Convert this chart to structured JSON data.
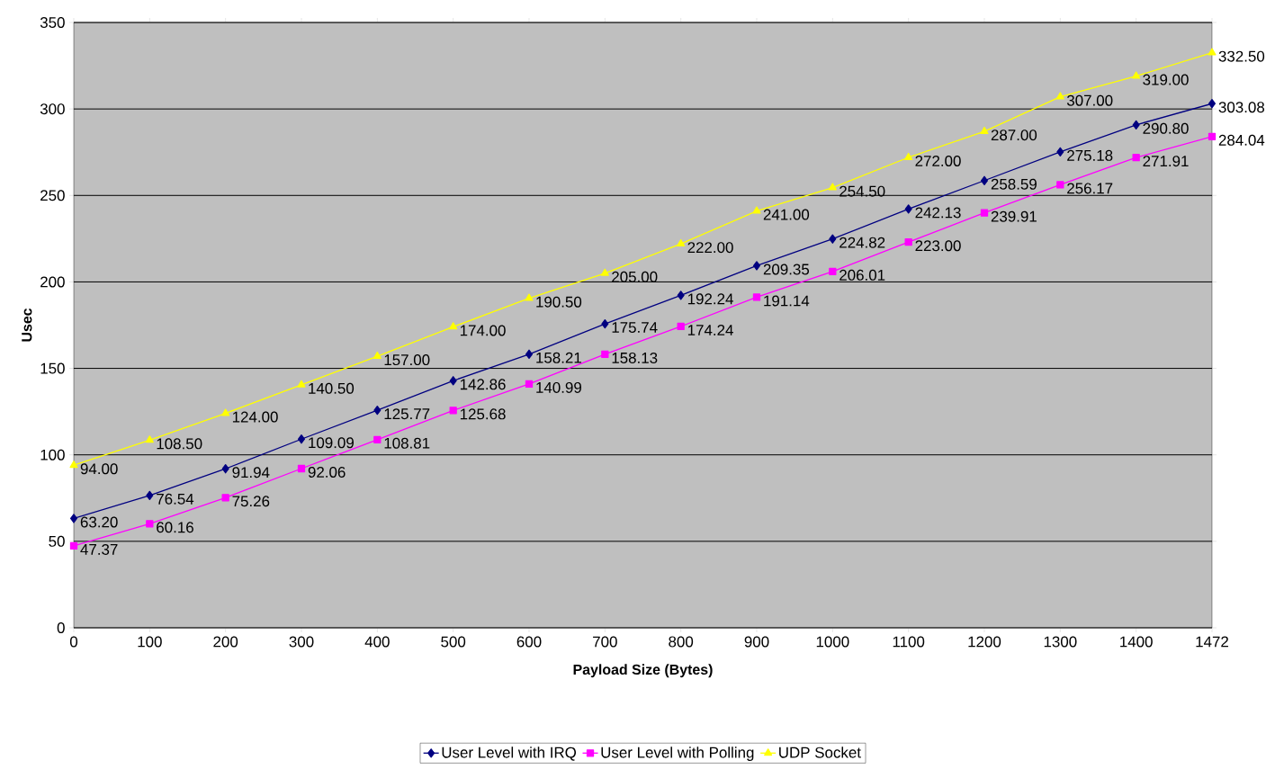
{
  "chart_data": {
    "type": "line",
    "xlabel": "Payload Size (Bytes)",
    "ylabel": "Usec",
    "categories": [
      "0",
      "100",
      "200",
      "300",
      "400",
      "500",
      "600",
      "700",
      "800",
      "900",
      "1000",
      "1100",
      "1200",
      "1300",
      "1400",
      "1472"
    ],
    "ylim": [
      0,
      350
    ],
    "yticks": [
      0,
      50,
      100,
      150,
      200,
      250,
      300,
      350
    ],
    "grid": "y",
    "legend": "bottom",
    "series": [
      {
        "name": "User Level with IRQ",
        "color": "#000080",
        "marker": "diamond",
        "values": [
          63.2,
          76.54,
          91.94,
          109.09,
          125.77,
          142.86,
          158.21,
          175.74,
          192.24,
          209.35,
          224.82,
          242.13,
          258.59,
          275.18,
          290.8,
          303.08
        ],
        "value_labels": [
          "63.20",
          "76.54",
          "91.94",
          "109.09",
          "125.77",
          "142.86",
          "158.21",
          "175.74",
          "192.24",
          "209.35",
          "224.82",
          "242.13",
          "258.59",
          "275.18",
          "290.80",
          "303.08"
        ]
      },
      {
        "name": "User Level with Polling",
        "color": "#ff00ff",
        "marker": "square",
        "values": [
          47.37,
          60.16,
          75.26,
          92.06,
          108.81,
          125.68,
          140.99,
          158.13,
          174.24,
          191.14,
          206.01,
          223.0,
          239.91,
          256.17,
          271.91,
          284.04
        ],
        "value_labels": [
          "47.37",
          "60.16",
          "75.26",
          "92.06",
          "108.81",
          "125.68",
          "140.99",
          "158.13",
          "174.24",
          "191.14",
          "206.01",
          "223.00",
          "239.91",
          "256.17",
          "271.91",
          "284.04"
        ]
      },
      {
        "name": "UDP Socket",
        "color": "#ffff00",
        "marker": "triangle",
        "values": [
          94.0,
          108.5,
          124.0,
          140.5,
          157.0,
          174.0,
          190.5,
          205.0,
          222.0,
          241.0,
          254.5,
          272.0,
          287.0,
          307.0,
          319.0,
          332.5
        ],
        "value_labels": [
          "94.00",
          "108.50",
          "124.00",
          "140.50",
          "157.00",
          "174.00",
          "190.50",
          "205.00",
          "222.00",
          "241.00",
          "254.50",
          "272.00",
          "287.00",
          "307.00",
          "319.00",
          "332.50"
        ]
      }
    ]
  }
}
